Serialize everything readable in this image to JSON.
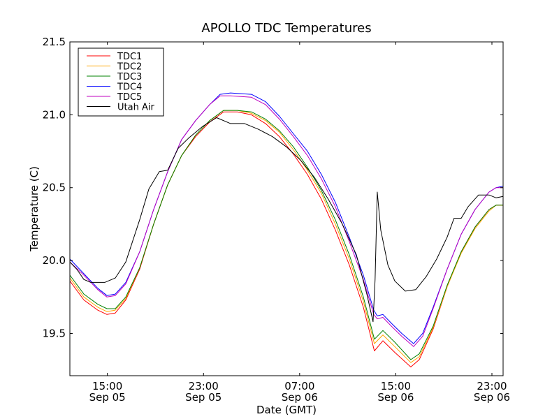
{
  "chart_data": {
    "type": "line",
    "title": "APOLLO TDC Temperatures",
    "xlabel": "Date (GMT)",
    "ylabel": "Temperature (C)",
    "x_units": "hours since Sep 05 00:00 GMT",
    "xlim": [
      11.88,
      47.93
    ],
    "ylim": [
      19.21,
      21.5
    ],
    "grid": false,
    "legend_position": "top-left",
    "yticks": [
      {
        "value": 19.5,
        "label": "19.5"
      },
      {
        "value": 20.0,
        "label": "20.0"
      },
      {
        "value": 20.5,
        "label": "20.5"
      },
      {
        "value": 21.0,
        "label": "21.0"
      },
      {
        "value": 21.5,
        "label": "21.5"
      }
    ],
    "xticks": [
      {
        "value": 15,
        "label": [
          "15:00",
          "Sep 05"
        ]
      },
      {
        "value": 23,
        "label": [
          "23:00",
          "Sep 05"
        ]
      },
      {
        "value": 31,
        "label": [
          "07:00",
          "Sep 06"
        ]
      },
      {
        "value": 39,
        "label": [
          "15:00",
          "Sep 06"
        ]
      },
      {
        "value": 47,
        "label": [
          "23:00",
          "Sep 06"
        ]
      }
    ],
    "series": [
      {
        "name": "TDC1",
        "color": "#ff0000",
        "points": [
          [
            11.88,
            19.86
          ],
          [
            13.04,
            19.73
          ],
          [
            14.2,
            19.66
          ],
          [
            14.96,
            19.63
          ],
          [
            15.66,
            19.64
          ],
          [
            16.53,
            19.73
          ],
          [
            17.69,
            19.94
          ],
          [
            18.85,
            20.25
          ],
          [
            20.02,
            20.52
          ],
          [
            21.18,
            20.72
          ],
          [
            22.34,
            20.85
          ],
          [
            23.51,
            20.95
          ],
          [
            24.67,
            21.02
          ],
          [
            25.83,
            21.02
          ],
          [
            26.99,
            21.0
          ],
          [
            28.16,
            20.94
          ],
          [
            29.32,
            20.85
          ],
          [
            30.48,
            20.73
          ],
          [
            31.65,
            20.59
          ],
          [
            32.81,
            20.42
          ],
          [
            33.97,
            20.21
          ],
          [
            35.13,
            19.97
          ],
          [
            36.3,
            19.68
          ],
          [
            37.22,
            19.38
          ],
          [
            37.93,
            19.45
          ],
          [
            38.92,
            19.37
          ],
          [
            40.25,
            19.27
          ],
          [
            40.95,
            19.32
          ],
          [
            42.11,
            19.53
          ],
          [
            43.27,
            19.82
          ],
          [
            44.44,
            20.06
          ],
          [
            45.6,
            20.23
          ],
          [
            46.76,
            20.35
          ],
          [
            47.35,
            20.38
          ],
          [
            47.93,
            20.38
          ]
        ]
      },
      {
        "name": "TDC2",
        "color": "#ffa500",
        "points": [
          [
            11.88,
            19.88
          ],
          [
            13.04,
            19.75
          ],
          [
            14.2,
            19.68
          ],
          [
            14.96,
            19.65
          ],
          [
            15.66,
            19.66
          ],
          [
            16.53,
            19.74
          ],
          [
            17.69,
            19.95
          ],
          [
            18.85,
            20.25
          ],
          [
            20.02,
            20.52
          ],
          [
            21.18,
            20.72
          ],
          [
            22.34,
            20.86
          ],
          [
            23.51,
            20.96
          ],
          [
            24.67,
            21.03
          ],
          [
            25.83,
            21.03
          ],
          [
            26.99,
            21.01
          ],
          [
            28.16,
            20.96
          ],
          [
            29.32,
            20.88
          ],
          [
            30.48,
            20.76
          ],
          [
            31.65,
            20.62
          ],
          [
            32.81,
            20.46
          ],
          [
            33.97,
            20.25
          ],
          [
            35.13,
            20.01
          ],
          [
            36.3,
            19.72
          ],
          [
            37.22,
            19.43
          ],
          [
            37.93,
            19.49
          ],
          [
            38.92,
            19.41
          ],
          [
            40.25,
            19.3
          ],
          [
            40.95,
            19.34
          ],
          [
            42.11,
            19.54
          ],
          [
            43.27,
            19.82
          ],
          [
            44.44,
            20.05
          ],
          [
            45.6,
            20.22
          ],
          [
            46.76,
            20.34
          ],
          [
            47.35,
            20.38
          ],
          [
            47.93,
            20.38
          ]
        ]
      },
      {
        "name": "TDC3",
        "color": "#008000",
        "points": [
          [
            11.88,
            19.9
          ],
          [
            13.04,
            19.77
          ],
          [
            14.2,
            19.7
          ],
          [
            14.96,
            19.67
          ],
          [
            15.66,
            19.67
          ],
          [
            16.53,
            19.75
          ],
          [
            17.69,
            19.95
          ],
          [
            18.85,
            20.25
          ],
          [
            20.02,
            20.52
          ],
          [
            21.18,
            20.72
          ],
          [
            22.34,
            20.86
          ],
          [
            23.51,
            20.96
          ],
          [
            24.67,
            21.03
          ],
          [
            25.83,
            21.03
          ],
          [
            26.99,
            21.02
          ],
          [
            28.16,
            20.97
          ],
          [
            29.32,
            20.89
          ],
          [
            30.48,
            20.78
          ],
          [
            31.65,
            20.64
          ],
          [
            32.81,
            20.48
          ],
          [
            33.97,
            20.28
          ],
          [
            35.13,
            20.04
          ],
          [
            36.3,
            19.75
          ],
          [
            37.22,
            19.46
          ],
          [
            37.93,
            19.52
          ],
          [
            38.92,
            19.44
          ],
          [
            40.25,
            19.32
          ],
          [
            40.95,
            19.36
          ],
          [
            42.11,
            19.55
          ],
          [
            43.27,
            19.83
          ],
          [
            44.44,
            20.06
          ],
          [
            45.6,
            20.23
          ],
          [
            46.76,
            20.35
          ],
          [
            47.35,
            20.38
          ],
          [
            47.93,
            20.38
          ]
        ]
      },
      {
        "name": "TDC4",
        "color": "#0000ff",
        "points": [
          [
            11.88,
            20.01
          ],
          [
            13.04,
            19.91
          ],
          [
            14.2,
            19.81
          ],
          [
            14.96,
            19.76
          ],
          [
            15.66,
            19.77
          ],
          [
            16.53,
            19.85
          ],
          [
            17.69,
            20.06
          ],
          [
            18.85,
            20.35
          ],
          [
            20.02,
            20.61
          ],
          [
            21.18,
            20.83
          ],
          [
            22.34,
            20.96
          ],
          [
            23.51,
            21.07
          ],
          [
            24.38,
            21.14
          ],
          [
            25.25,
            21.15
          ],
          [
            26.99,
            21.14
          ],
          [
            28.16,
            21.09
          ],
          [
            29.32,
            20.99
          ],
          [
            30.48,
            20.87
          ],
          [
            31.65,
            20.75
          ],
          [
            32.81,
            20.59
          ],
          [
            33.97,
            20.4
          ],
          [
            35.13,
            20.16
          ],
          [
            36.3,
            19.9
          ],
          [
            37.17,
            19.66
          ],
          [
            37.46,
            19.62
          ],
          [
            37.93,
            19.63
          ],
          [
            38.63,
            19.57
          ],
          [
            39.5,
            19.5
          ],
          [
            40.48,
            19.43
          ],
          [
            41.24,
            19.5
          ],
          [
            42.11,
            19.68
          ],
          [
            43.27,
            19.94
          ],
          [
            44.44,
            20.18
          ],
          [
            45.6,
            20.35
          ],
          [
            46.76,
            20.47
          ],
          [
            47.35,
            20.5
          ],
          [
            47.93,
            20.51
          ]
        ]
      },
      {
        "name": "TDC5",
        "color": "#bf00bf",
        "points": [
          [
            11.88,
            19.99
          ],
          [
            13.04,
            19.9
          ],
          [
            14.2,
            19.8
          ],
          [
            14.96,
            19.75
          ],
          [
            15.66,
            19.76
          ],
          [
            16.53,
            19.84
          ],
          [
            17.69,
            20.06
          ],
          [
            18.85,
            20.35
          ],
          [
            20.02,
            20.61
          ],
          [
            21.18,
            20.83
          ],
          [
            22.34,
            20.96
          ],
          [
            23.51,
            21.07
          ],
          [
            24.38,
            21.13
          ],
          [
            25.25,
            21.13
          ],
          [
            26.99,
            21.12
          ],
          [
            28.16,
            21.07
          ],
          [
            29.32,
            20.97
          ],
          [
            30.48,
            20.85
          ],
          [
            31.65,
            20.72
          ],
          [
            32.81,
            20.56
          ],
          [
            33.97,
            20.37
          ],
          [
            35.13,
            20.13
          ],
          [
            36.3,
            19.87
          ],
          [
            37.17,
            19.63
          ],
          [
            37.46,
            19.6
          ],
          [
            37.93,
            19.61
          ],
          [
            38.63,
            19.55
          ],
          [
            39.5,
            19.48
          ],
          [
            40.48,
            19.41
          ],
          [
            41.24,
            19.48
          ],
          [
            42.11,
            19.67
          ],
          [
            43.27,
            19.94
          ],
          [
            44.44,
            20.18
          ],
          [
            45.6,
            20.35
          ],
          [
            46.76,
            20.47
          ],
          [
            47.35,
            20.5
          ],
          [
            47.93,
            20.5
          ]
        ]
      },
      {
        "name": "Utah Air",
        "color": "#000000",
        "points": [
          [
            11.88,
            19.99
          ],
          [
            12.46,
            19.94
          ],
          [
            13.04,
            19.87
          ],
          [
            13.62,
            19.85
          ],
          [
            14.78,
            19.85
          ],
          [
            15.66,
            19.88
          ],
          [
            16.53,
            19.99
          ],
          [
            17.69,
            20.28
          ],
          [
            18.45,
            20.49
          ],
          [
            19.32,
            20.61
          ],
          [
            20.02,
            20.62
          ],
          [
            20.89,
            20.77
          ],
          [
            21.76,
            20.84
          ],
          [
            22.92,
            20.92
          ],
          [
            24.09,
            20.98
          ],
          [
            25.25,
            20.94
          ],
          [
            26.41,
            20.94
          ],
          [
            27.58,
            20.9
          ],
          [
            28.74,
            20.85
          ],
          [
            29.9,
            20.78
          ],
          [
            31.06,
            20.69
          ],
          [
            32.23,
            20.57
          ],
          [
            33.39,
            20.42
          ],
          [
            34.55,
            20.25
          ],
          [
            35.72,
            20.04
          ],
          [
            36.59,
            19.77
          ],
          [
            37.11,
            19.58
          ],
          [
            37.28,
            19.87
          ],
          [
            37.46,
            20.47
          ],
          [
            37.75,
            20.21
          ],
          [
            38.34,
            19.97
          ],
          [
            38.92,
            19.86
          ],
          [
            39.79,
            19.79
          ],
          [
            40.66,
            19.8
          ],
          [
            41.53,
            19.89
          ],
          [
            42.4,
            20.01
          ],
          [
            43.27,
            20.16
          ],
          [
            43.85,
            20.29
          ],
          [
            44.44,
            20.29
          ],
          [
            45.02,
            20.37
          ],
          [
            45.89,
            20.45
          ],
          [
            46.76,
            20.45
          ],
          [
            47.35,
            20.43
          ],
          [
            47.93,
            20.44
          ]
        ]
      }
    ]
  }
}
